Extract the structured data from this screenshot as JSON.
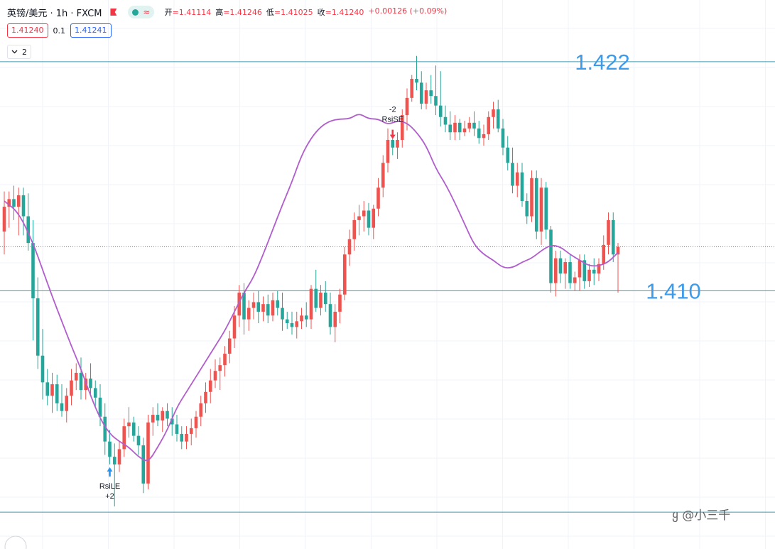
{
  "header": {
    "symbol": "英镑/美元 · 1h · FXCM",
    "open_label": "开",
    "open": "=1.41114",
    "high_label": "高",
    "high": "=1.41246",
    "low_label": "低",
    "low": "=1.41025",
    "close_label": "收",
    "close": "=1.41240",
    "change": "+0.00126 (+0.09%)",
    "wave_icon": "≈"
  },
  "trade": {
    "sell": "1.41240",
    "spread": "0.1",
    "buy": "1.41241"
  },
  "collapse": {
    "count": "2"
  },
  "watermark": "@小三千",
  "colors": {
    "up": "#ef5350",
    "down": "#26a69a",
    "ma": "#b15dcc",
    "level": "#3e9ab0",
    "label": "#3d9be9"
  },
  "chart_data": {
    "type": "candlestick",
    "ylim": [
      1.3975,
      1.4228
    ],
    "levels": [
      {
        "value": 1.4221,
        "label": "1.422"
      },
      {
        "value": 1.4101,
        "label": "1.410"
      },
      {
        "value": 1.3985,
        "label": ""
      }
    ],
    "last_price": 1.4124,
    "ohlc": [
      [
        1.4132,
        1.4153,
        1.412,
        1.4145
      ],
      [
        1.4145,
        1.4153,
        1.4134,
        1.4149
      ],
      [
        1.4149,
        1.4156,
        1.4138,
        1.4145
      ],
      [
        1.4145,
        1.4155,
        1.413,
        1.4151
      ],
      [
        1.4151,
        1.4155,
        1.413,
        1.414
      ],
      [
        1.414,
        1.4152,
        1.4122,
        1.4126
      ],
      [
        1.4126,
        1.4138,
        1.4075,
        1.4097
      ],
      [
        1.4097,
        1.4108,
        1.406,
        1.4067
      ],
      [
        1.4067,
        1.4081,
        1.4044,
        1.4053
      ],
      [
        1.4053,
        1.406,
        1.4041,
        1.4046
      ],
      [
        1.4046,
        1.4058,
        1.4037,
        1.4052
      ],
      [
        1.4052,
        1.4057,
        1.4038,
        1.4042
      ],
      [
        1.4042,
        1.4052,
        1.4035,
        1.4038
      ],
      [
        1.4038,
        1.405,
        1.4032,
        1.4046
      ],
      [
        1.4046,
        1.406,
        1.4041,
        1.4054
      ],
      [
        1.4054,
        1.4063,
        1.4049,
        1.4058
      ],
      [
        1.4058,
        1.4066,
        1.4044,
        1.4049
      ],
      [
        1.4049,
        1.4058,
        1.4044,
        1.4055
      ],
      [
        1.4055,
        1.4063,
        1.4046,
        1.405
      ],
      [
        1.405,
        1.4054,
        1.404,
        1.4045
      ],
      [
        1.4045,
        1.4052,
        1.403,
        1.4035
      ],
      [
        1.4035,
        1.4042,
        1.4015,
        1.4022
      ],
      [
        1.4022,
        1.4028,
        1.401,
        1.4014
      ],
      [
        1.4014,
        1.4021,
        1.3988,
        1.401
      ],
      [
        1.401,
        1.4022,
        1.4006,
        1.4018
      ],
      [
        1.4018,
        1.4034,
        1.4014,
        1.403
      ],
      [
        1.403,
        1.404,
        1.4024,
        1.4032
      ],
      [
        1.4032,
        1.4035,
        1.4022,
        1.4025
      ],
      [
        1.4025,
        1.403,
        1.4015,
        1.402
      ],
      [
        1.402,
        1.4024,
        1.3995,
        1.4
      ],
      [
        1.4,
        1.4036,
        1.3997,
        1.4032
      ],
      [
        1.4032,
        1.404,
        1.4025,
        1.4036
      ],
      [
        1.4036,
        1.4042,
        1.403,
        1.4033
      ],
      [
        1.4033,
        1.404,
        1.4027,
        1.4038
      ],
      [
        1.4038,
        1.4042,
        1.403,
        1.4034
      ],
      [
        1.4034,
        1.404,
        1.4025,
        1.4031
      ],
      [
        1.4031,
        1.4036,
        1.4022,
        1.4026
      ],
      [
        1.4026,
        1.403,
        1.4018,
        1.4022
      ],
      [
        1.4022,
        1.403,
        1.4018,
        1.4026
      ],
      [
        1.4026,
        1.4034,
        1.402,
        1.4029
      ],
      [
        1.4029,
        1.4038,
        1.4024,
        1.4035
      ],
      [
        1.4035,
        1.4046,
        1.403,
        1.4042
      ],
      [
        1.4042,
        1.4053,
        1.4037,
        1.4048
      ],
      [
        1.4048,
        1.406,
        1.4042,
        1.4054
      ],
      [
        1.4054,
        1.4065,
        1.405,
        1.4059
      ],
      [
        1.4059,
        1.4066,
        1.4049,
        1.4062
      ],
      [
        1.4062,
        1.4072,
        1.4056,
        1.4068
      ],
      [
        1.4068,
        1.408,
        1.4063,
        1.4076
      ],
      [
        1.4076,
        1.4093,
        1.4071,
        1.4088
      ],
      [
        1.4088,
        1.4104,
        1.4082,
        1.41
      ],
      [
        1.41,
        1.4105,
        1.4078,
        1.4086
      ],
      [
        1.4086,
        1.4096,
        1.408,
        1.4092
      ],
      [
        1.4092,
        1.41,
        1.4086,
        1.4095
      ],
      [
        1.4095,
        1.4101,
        1.4084,
        1.409
      ],
      [
        1.409,
        1.4098,
        1.4085,
        1.4094
      ],
      [
        1.4094,
        1.4099,
        1.4084,
        1.4088
      ],
      [
        1.4088,
        1.41,
        1.4085,
        1.4096
      ],
      [
        1.4096,
        1.4101,
        1.4088,
        1.4092
      ],
      [
        1.4092,
        1.41,
        1.408,
        1.4086
      ],
      [
        1.4086,
        1.409,
        1.4081,
        1.4084
      ],
      [
        1.4084,
        1.409,
        1.4078,
        1.4082
      ],
      [
        1.4082,
        1.409,
        1.4076,
        1.4085
      ],
      [
        1.4085,
        1.4092,
        1.4081,
        1.4088
      ],
      [
        1.4088,
        1.4095,
        1.4082,
        1.4086
      ],
      [
        1.4086,
        1.4104,
        1.4081,
        1.4102
      ],
      [
        1.4102,
        1.4112,
        1.409,
        1.4092
      ],
      [
        1.4092,
        1.4104,
        1.4088,
        1.41
      ],
      [
        1.41,
        1.4106,
        1.409,
        1.4094
      ],
      [
        1.4094,
        1.41,
        1.4078,
        1.4082
      ],
      [
        1.4082,
        1.4094,
        1.4074,
        1.409
      ],
      [
        1.409,
        1.4102,
        1.4084,
        1.4099
      ],
      [
        1.4099,
        1.4124,
        1.4096,
        1.412
      ],
      [
        1.412,
        1.4133,
        1.4114,
        1.4128
      ],
      [
        1.4128,
        1.4142,
        1.4122,
        1.4138
      ],
      [
        1.4138,
        1.4146,
        1.413,
        1.414
      ],
      [
        1.414,
        1.4148,
        1.4132,
        1.4143
      ],
      [
        1.4143,
        1.4147,
        1.413,
        1.4134
      ],
      [
        1.4134,
        1.4146,
        1.4128,
        1.4144
      ],
      [
        1.4144,
        1.416,
        1.414,
        1.4155
      ],
      [
        1.4155,
        1.4172,
        1.415,
        1.4168
      ],
      [
        1.4168,
        1.4186,
        1.4163,
        1.418
      ],
      [
        1.418,
        1.4185,
        1.4172,
        1.4176
      ],
      [
        1.4176,
        1.4184,
        1.417,
        1.418
      ],
      [
        1.418,
        1.4196,
        1.4176,
        1.4193
      ],
      [
        1.4193,
        1.4207,
        1.4185,
        1.4202
      ],
      [
        1.4202,
        1.4214,
        1.42,
        1.4212
      ],
      [
        1.4212,
        1.4224,
        1.4206,
        1.421
      ],
      [
        1.421,
        1.4216,
        1.4196,
        1.4199
      ],
      [
        1.4199,
        1.421,
        1.4196,
        1.4206
      ],
      [
        1.4206,
        1.4214,
        1.4199,
        1.4203
      ],
      [
        1.4203,
        1.4219,
        1.4193,
        1.4198
      ],
      [
        1.4198,
        1.4216,
        1.4187,
        1.4192
      ],
      [
        1.4192,
        1.4198,
        1.4184,
        1.4188
      ],
      [
        1.4188,
        1.4195,
        1.418,
        1.4184
      ],
      [
        1.4184,
        1.4193,
        1.418,
        1.4189
      ],
      [
        1.4189,
        1.4191,
        1.418,
        1.4184
      ],
      [
        1.4184,
        1.419,
        1.4182,
        1.4186
      ],
      [
        1.4186,
        1.4192,
        1.4184,
        1.4189
      ],
      [
        1.4189,
        1.4195,
        1.4182,
        1.4186
      ],
      [
        1.4186,
        1.419,
        1.4178,
        1.4181
      ],
      [
        1.4181,
        1.4188,
        1.4177,
        1.4183
      ],
      [
        1.4183,
        1.4195,
        1.418,
        1.4192
      ],
      [
        1.4192,
        1.42,
        1.4186,
        1.4196
      ],
      [
        1.4196,
        1.4201,
        1.4184,
        1.4186
      ],
      [
        1.4186,
        1.4191,
        1.4172,
        1.4176
      ],
      [
        1.4176,
        1.4182,
        1.4164,
        1.4168
      ],
      [
        1.4168,
        1.4176,
        1.4152,
        1.4156
      ],
      [
        1.4156,
        1.4168,
        1.415,
        1.4163
      ],
      [
        1.4163,
        1.4168,
        1.4145,
        1.4148
      ],
      [
        1.4148,
        1.4152,
        1.4136,
        1.414
      ],
      [
        1.414,
        1.4164,
        1.4137,
        1.416
      ],
      [
        1.416,
        1.4164,
        1.4128,
        1.4132
      ],
      [
        1.4132,
        1.416,
        1.4125,
        1.4155
      ],
      [
        1.4155,
        1.4158,
        1.4128,
        1.4133
      ],
      [
        1.4133,
        1.4135,
        1.41,
        1.4105
      ],
      [
        1.4105,
        1.4122,
        1.4098,
        1.4118
      ],
      [
        1.4118,
        1.4122,
        1.4105,
        1.411
      ],
      [
        1.411,
        1.4118,
        1.4102,
        1.4116
      ],
      [
        1.4116,
        1.412,
        1.4102,
        1.4105
      ],
      [
        1.4105,
        1.4111,
        1.4101,
        1.4108
      ],
      [
        1.4108,
        1.412,
        1.4101,
        1.4117
      ],
      [
        1.4117,
        1.412,
        1.4102,
        1.4106
      ],
      [
        1.4106,
        1.4115,
        1.4103,
        1.4112
      ],
      [
        1.4112,
        1.4118,
        1.4104,
        1.411
      ],
      [
        1.411,
        1.4118,
        1.4106,
        1.4115
      ],
      [
        1.4115,
        1.413,
        1.4112,
        1.4125
      ],
      [
        1.4125,
        1.4142,
        1.412,
        1.4138
      ],
      [
        1.4138,
        1.4142,
        1.4116,
        1.412
      ],
      [
        1.412,
        1.4126,
        1.41,
        1.4124
      ]
    ],
    "ma": {
      "x": [
        0,
        3,
        6,
        8,
        10,
        12,
        14,
        16,
        18,
        20,
        22,
        24,
        26,
        28,
        30,
        32,
        34,
        36,
        38,
        40,
        42,
        44,
        46,
        48,
        50,
        52,
        54,
        56,
        58,
        60,
        62,
        64,
        66,
        68,
        70,
        72,
        74,
        76,
        78,
        80,
        82,
        84,
        86,
        88,
        90,
        92,
        94,
        96,
        98,
        100,
        102,
        104,
        106,
        108,
        110,
        112,
        114,
        116,
        118,
        120,
        122,
        124,
        126,
        128
      ],
      "y": [
        1.4148,
        1.4142,
        1.4126,
        1.4112,
        1.4098,
        1.4085,
        1.4072,
        1.406,
        1.4046,
        1.4034,
        1.4026,
        1.4022,
        1.4019,
        1.4014,
        1.4011,
        1.4019,
        1.4028,
        1.404,
        1.4048,
        1.4056,
        1.4064,
        1.4072,
        1.408,
        1.409,
        1.41,
        1.4108,
        1.412,
        1.4133,
        1.4146,
        1.4158,
        1.4172,
        1.4181,
        1.4187,
        1.419,
        1.4191,
        1.4191,
        1.4194,
        1.4191,
        1.4191,
        1.4188,
        1.419,
        1.4189,
        1.4184,
        1.4177,
        1.4165,
        1.4157,
        1.4147,
        1.4136,
        1.4125,
        1.412,
        1.4117,
        1.4113,
        1.4113,
        1.4116,
        1.4118,
        1.4122,
        1.4125,
        1.4124,
        1.412,
        1.4117,
        1.4114,
        1.4114,
        1.4116,
        1.4121
      ]
    },
    "signals": [
      {
        "index": 22,
        "dir": "long",
        "lines": [
          "RsiLE",
          "+2"
        ]
      },
      {
        "index": 81,
        "dir": "short",
        "lines": [
          "-2",
          "RsiSE"
        ]
      }
    ]
  }
}
